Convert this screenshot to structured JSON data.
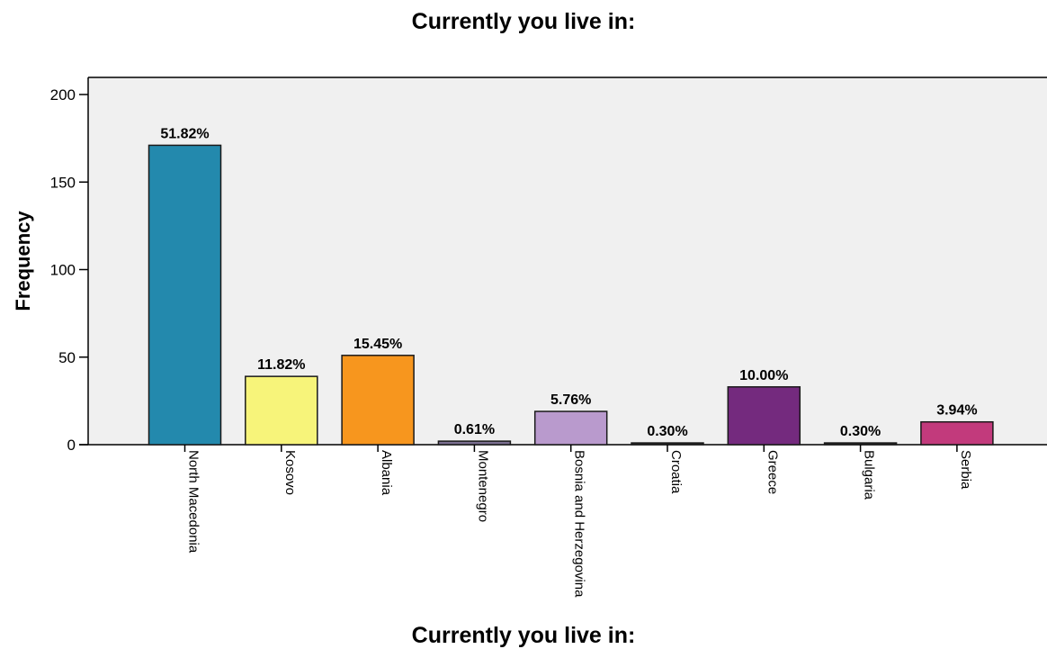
{
  "chart_data": {
    "type": "bar",
    "title": "Currently you live in:",
    "xlabel": "Currently you live in:",
    "ylabel": "Frequency",
    "categories": [
      "North Macedonia",
      "Kosovo",
      "Albania",
      "Montenegro",
      "Bosnia and Herzegovina",
      "Croatia",
      "Greece",
      "Bulgaria",
      "Serbia"
    ],
    "values": [
      171,
      39,
      51,
      2,
      19,
      1,
      33,
      1,
      13
    ],
    "data_labels": [
      "51.82%",
      "11.82%",
      "15.45%",
      "0.61%",
      "5.76%",
      "0.30%",
      "10.00%",
      "0.30%",
      "3.94%"
    ],
    "colors": [
      "#2389ad",
      "#f7f47a",
      "#f7961e",
      "#7b6f90",
      "#b99acd",
      "#2a2a2a",
      "#742a7e",
      "#2a2a2a",
      "#c23a7c"
    ],
    "yticks": [
      0,
      50,
      100,
      150,
      200
    ],
    "ylim": [
      0,
      200
    ],
    "grid": false,
    "plot_background": "#f0f0f0"
  }
}
